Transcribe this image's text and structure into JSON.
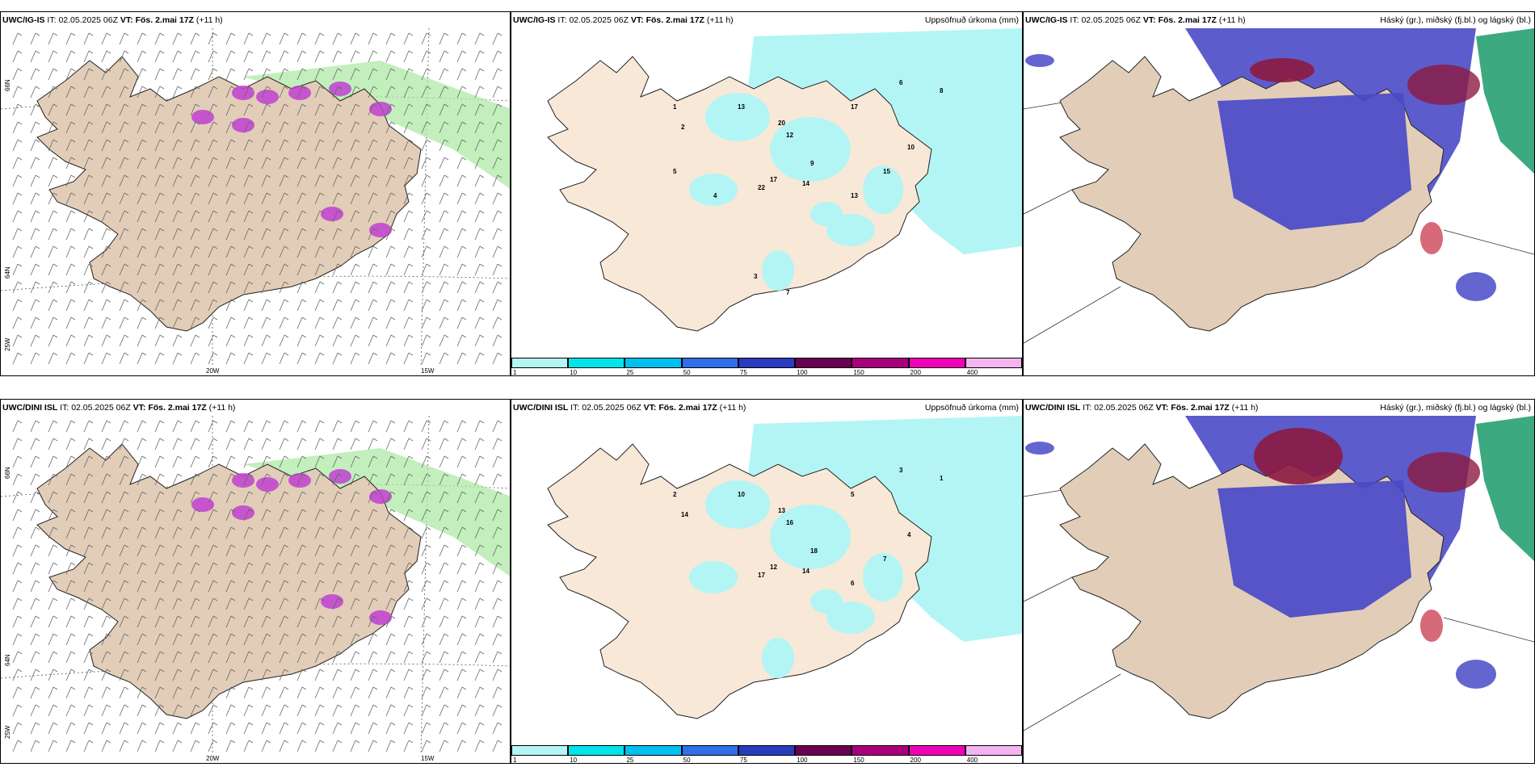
{
  "rows": [
    {
      "model": "UWC/IG-IS",
      "it_label": "IT:",
      "it_value": "02.05.2025 06Z",
      "vt_label": "VT:",
      "vt_value": "Fös. 2.mai 17Z",
      "lead": "(+11 h)"
    },
    {
      "model": "UWC/DINI ISL",
      "it_label": "IT:",
      "it_value": "02.05.2025 06Z",
      "vt_label": "VT:",
      "vt_value": "Fös. 2.mai 17Z",
      "lead": "(+11 h)"
    }
  ],
  "precip_title": "Uppsöfnuð úrkoma (mm)",
  "cloud_title": "Háský (gr.), miðský (fj.bl.) og lágský (bl.)",
  "lon_labels": [
    "20W",
    "15W"
  ],
  "lat_labels": [
    "66N",
    "64N",
    "25W"
  ],
  "colorbar": {
    "levels": [
      "1",
      "10",
      "25",
      "50",
      "75",
      "100",
      "150",
      "200",
      "400"
    ],
    "colors": [
      "#b3f5f5",
      "#00e5ea",
      "#00c0f0",
      "#2f6fe8",
      "#2a3bbd",
      "#6a0050",
      "#a8007c",
      "#f000b8",
      "#f4b4f0"
    ]
  },
  "precip_numbers_top": [
    "1",
    "2",
    "17",
    "22",
    "13",
    "20",
    "12",
    "9",
    "14",
    "13",
    "15",
    "10",
    "17",
    "6",
    "8",
    "4",
    "5",
    "3",
    "7"
  ],
  "precip_numbers_bottom": [
    "2",
    "14",
    "12",
    "17",
    "10",
    "13",
    "16",
    "18",
    "14",
    "6",
    "7",
    "4",
    "5",
    "3",
    "1"
  ],
  "colors": {
    "land": "#e2cdb8",
    "land_precip": "#f8e8d8",
    "precip_light": "#b3f5f5",
    "cloud_high_blue": "#4a4ac8",
    "cloud_dark_red": "#8c1a40",
    "cloud_green": "#1a9a6a",
    "snow_purple": "#c040d0",
    "rain_green": "#a8e8a0"
  }
}
